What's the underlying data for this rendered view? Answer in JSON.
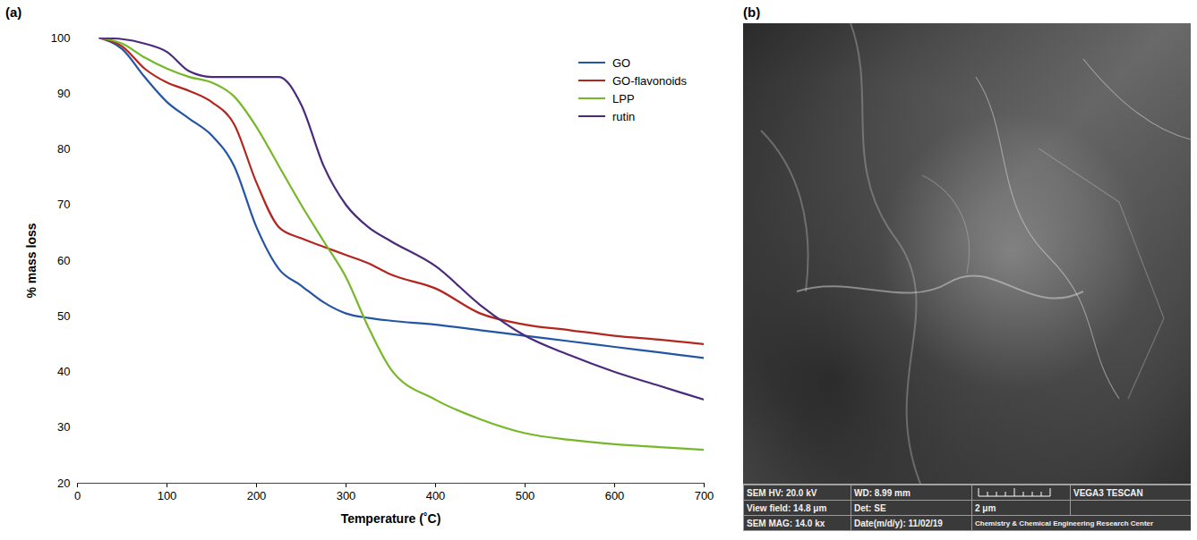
{
  "panel_labels": [
    "(a)",
    "(b)"
  ],
  "chart_data": {
    "type": "line",
    "x_label": "Temperature (˚C)",
    "y_label": "% mass loss",
    "x": [
      25,
      50,
      75,
      100,
      125,
      150,
      175,
      200,
      225,
      250,
      275,
      300,
      325,
      350,
      400,
      450,
      500,
      550,
      600,
      650,
      700
    ],
    "series": [
      {
        "name": "GO",
        "color": "#2455a4",
        "values": [
          100,
          98,
          93,
          88.5,
          85.5,
          82.5,
          77,
          66,
          58.5,
          55.5,
          52.5,
          50.5,
          49.7,
          49.2,
          48.5,
          47.5,
          46.5,
          45.5,
          44.5,
          43.5,
          42.5
        ]
      },
      {
        "name": "GO-flavonoids",
        "color": "#b3261e",
        "values": [
          100,
          98.5,
          94.5,
          92,
          90.5,
          88.5,
          84.5,
          74,
          66,
          64,
          62.5,
          61,
          59.5,
          57.5,
          55,
          50.5,
          48.5,
          47.5,
          46.5,
          45.8,
          45
        ]
      },
      {
        "name": "LPP",
        "color": "#77b82a",
        "values": [
          100,
          99,
          96.5,
          94.5,
          93,
          92,
          89.5,
          84,
          77,
          70,
          63.5,
          57,
          48,
          40.5,
          35,
          31.5,
          29,
          27.8,
          27,
          26.5,
          26
        ]
      },
      {
        "name": "rutin",
        "color": "#4b2a7b",
        "values": [
          100,
          99.8,
          99,
          97.5,
          94,
          93,
          93,
          93,
          93,
          88,
          77,
          70,
          66,
          63.5,
          59,
          52,
          46.5,
          43,
          40,
          37.5,
          35
        ]
      }
    ],
    "xlim": [
      0,
      700
    ],
    "xticks": [
      0,
      100,
      200,
      300,
      400,
      500,
      600,
      700
    ],
    "ylim": [
      20,
      100
    ],
    "yticks": [
      20,
      30,
      40,
      50,
      60,
      70,
      80,
      90,
      100
    ],
    "grid": false,
    "legend": "top-right"
  },
  "sem_image": {
    "info_bar": [
      [
        "SEM HV: 20.0 kV",
        "WD: 8.99 mm",
        "",
        "VEGA3 TESCAN"
      ],
      [
        "View field: 14.8 μm",
        "Det: SE",
        "2 μm",
        ""
      ],
      [
        "SEM MAG: 14.0 kx",
        "Date(m/d/y): 11/02/19",
        "Chemistry & Chemical Engineering Research Center"
      ]
    ]
  }
}
